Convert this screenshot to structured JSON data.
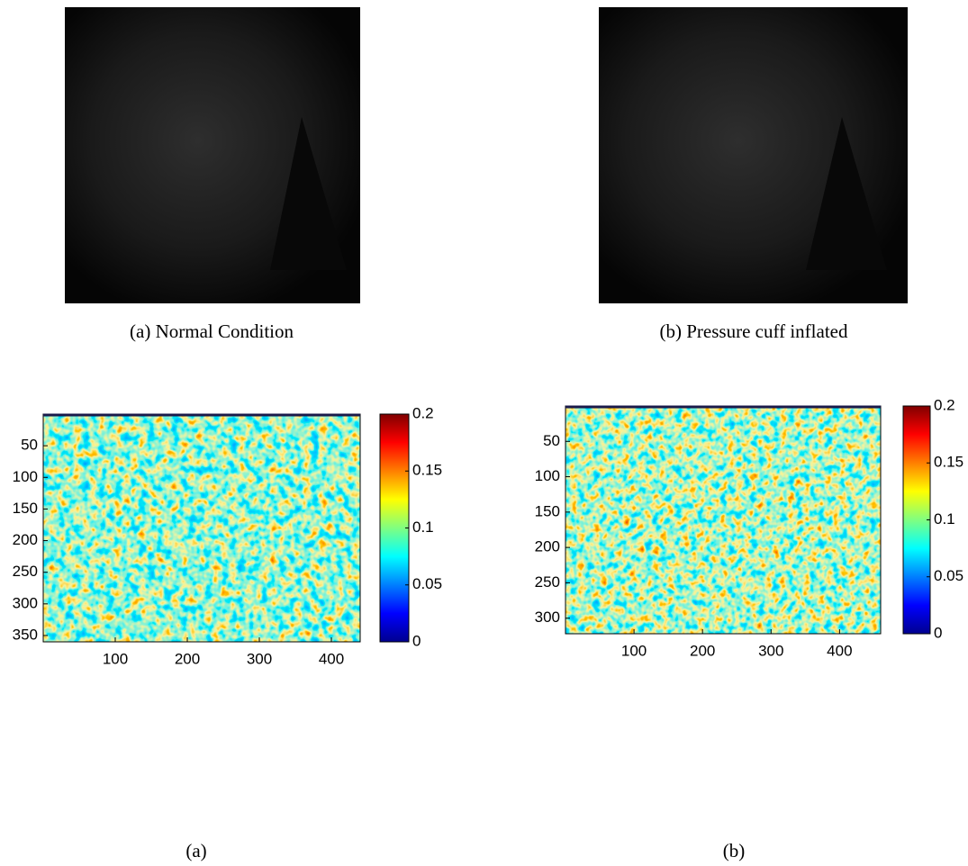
{
  "photos": [
    {
      "caption": "(a) Normal Condition"
    },
    {
      "caption": "(b) Pressure cuff inflated"
    }
  ],
  "chart_data": [
    {
      "type": "heatmap",
      "caption": "(a)",
      "colormap": "jet",
      "xlim": [
        0,
        440
      ],
      "xticks": [
        100,
        200,
        300,
        400
      ],
      "ylim": [
        0,
        360
      ],
      "yticks": [
        50,
        100,
        150,
        200,
        250,
        300,
        350
      ],
      "clim": [
        0,
        0.2
      ],
      "cticks": [
        0,
        0.05,
        0.1,
        0.15,
        0.2
      ]
    },
    {
      "type": "heatmap",
      "caption": "(b)",
      "colormap": "jet",
      "xlim": [
        0,
        460
      ],
      "xticks": [
        100,
        200,
        300,
        400
      ],
      "ylim": [
        0,
        322
      ],
      "yticks": [
        50,
        100,
        150,
        200,
        250,
        300
      ],
      "clim": [
        0,
        0.2
      ],
      "cticks": [
        0,
        0.05,
        0.1,
        0.15,
        0.2
      ]
    }
  ]
}
